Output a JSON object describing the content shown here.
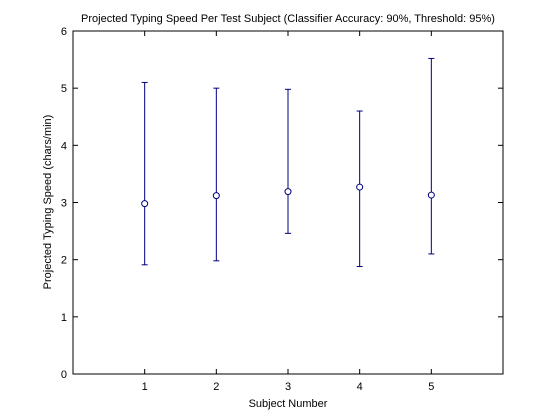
{
  "chart_data": {
    "type": "scatter",
    "title": "Projected Typing Speed Per Test Subject (Classifier Accuracy: 90%, Threshold: 95%)",
    "xlabel": "Subject Number",
    "ylabel": "Projected Typing Speed (chars/min)",
    "xlim": [
      0,
      6
    ],
    "ylim": [
      0,
      6
    ],
    "xticks": [
      1,
      2,
      3,
      4,
      5
    ],
    "yticks": [
      0,
      1,
      2,
      3,
      4,
      5,
      6
    ],
    "grid": false,
    "legend": "none",
    "series": [
      {
        "marker": "circle",
        "error_bars": true,
        "x": [
          1,
          2,
          3,
          4,
          5
        ],
        "y": [
          2.98,
          3.12,
          3.19,
          3.27,
          3.13
        ],
        "lower": [
          1.91,
          1.98,
          2.46,
          1.88,
          2.1
        ],
        "upper": [
          5.1,
          5.0,
          4.98,
          4.6,
          5.52
        ]
      }
    ],
    "colors": {
      "series": "#000080",
      "axes": "#000000"
    }
  }
}
